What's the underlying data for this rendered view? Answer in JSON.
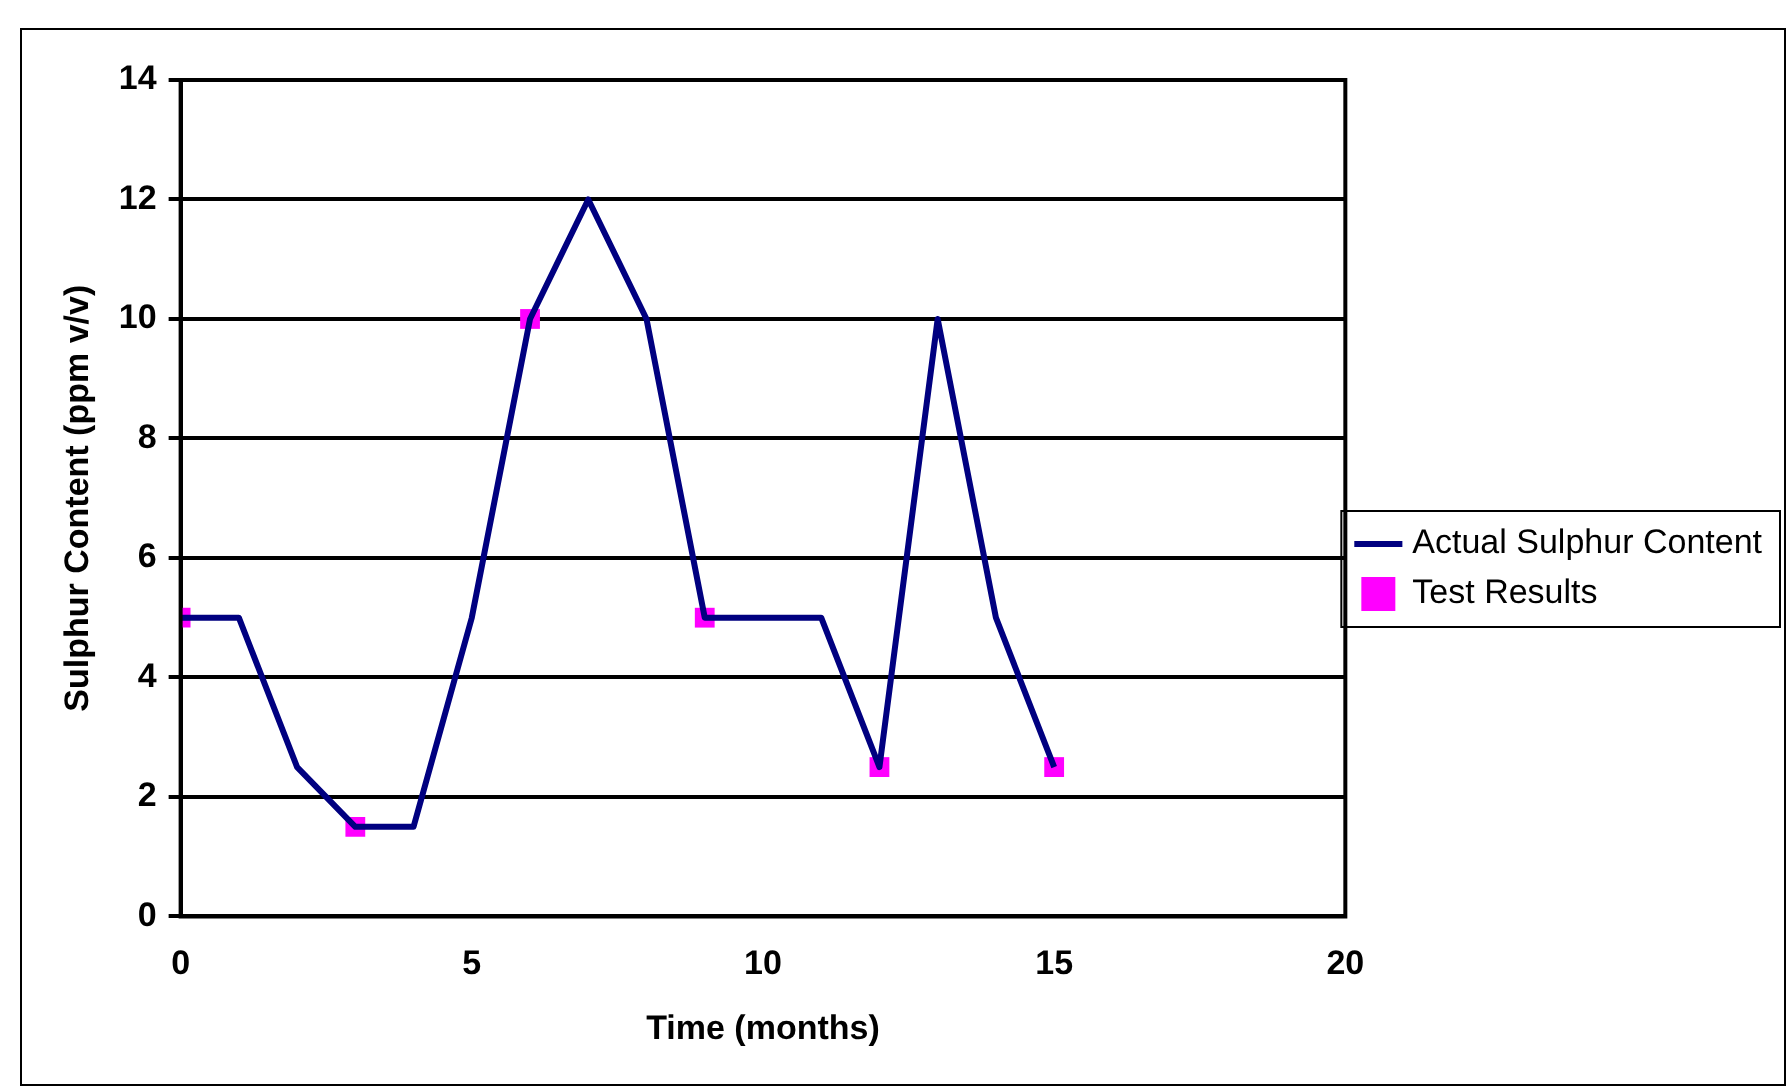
{
  "chart_data": {
    "type": "line",
    "xlabel": "Time (months)",
    "ylabel": "Sulphur Content (ppm v/v)",
    "xlim": [
      0,
      20
    ],
    "xticks": [
      0,
      5,
      10,
      15,
      20
    ],
    "ylim": [
      0,
      14
    ],
    "yticks": [
      0,
      2,
      4,
      6,
      8,
      10,
      12,
      14
    ],
    "grid": "y",
    "legend": "right",
    "series": [
      {
        "name": "Actual Sulphur Content",
        "color": "#000080",
        "marker": "none",
        "x": [
          0,
          1,
          2,
          3,
          4,
          5,
          6,
          7,
          8,
          9,
          10,
          11,
          12,
          13,
          14,
          15
        ],
        "values": [
          5,
          5,
          2.5,
          1.5,
          1.5,
          5,
          10,
          12,
          10,
          5,
          5,
          5,
          2.5,
          10,
          5,
          2.5
        ]
      },
      {
        "name": "Test Results",
        "type": "scatter",
        "color": "#ff00ff",
        "marker": "square",
        "x": [
          0,
          3,
          6,
          9,
          12,
          15
        ],
        "values": [
          5,
          1.5,
          10,
          5,
          2.5,
          2.5
        ]
      }
    ]
  }
}
